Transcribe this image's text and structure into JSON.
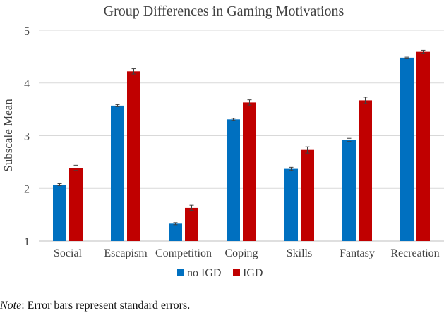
{
  "chart_data": {
    "type": "bar",
    "title": "Group Differences in Gaming Motivations",
    "xlabel": "",
    "ylabel": "Subscale Mean",
    "ylim": [
      1,
      5
    ],
    "yticks": [
      1,
      2,
      3,
      4,
      5
    ],
    "grid": true,
    "legend_position": "bottom-center",
    "categories": [
      "Social",
      "Escapism",
      "Competition",
      "Coping",
      "Skills",
      "Fantasy",
      "Recreation"
    ],
    "series": [
      {
        "name": "no IGD",
        "color": "#0070C0",
        "values": [
          2.07,
          3.57,
          1.33,
          3.31,
          2.37,
          2.92,
          4.48
        ],
        "errors": [
          0.02,
          0.02,
          0.02,
          0.02,
          0.03,
          0.03,
          0.01
        ]
      },
      {
        "name": "IGD",
        "color": "#C00000",
        "values": [
          2.39,
          4.22,
          1.63,
          3.63,
          2.73,
          3.67,
          4.59
        ],
        "errors": [
          0.05,
          0.05,
          0.05,
          0.05,
          0.06,
          0.06,
          0.03
        ]
      }
    ]
  },
  "note": {
    "label": "Note",
    "text": ": Error bars represent standard errors."
  }
}
